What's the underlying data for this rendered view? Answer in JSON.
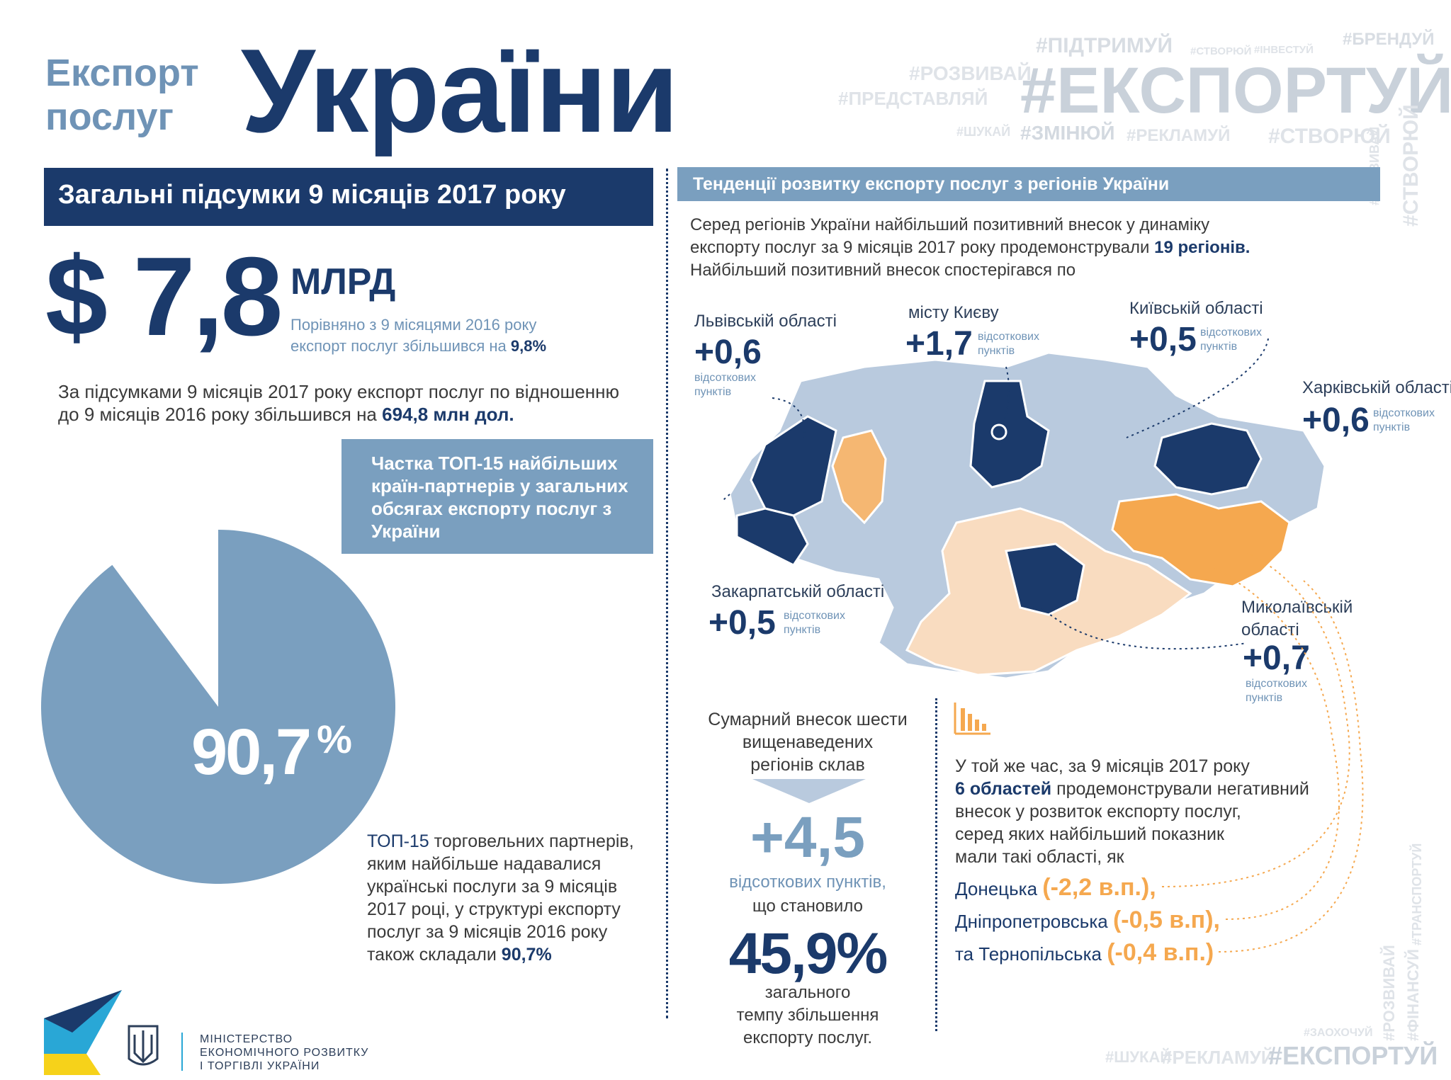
{
  "header": {
    "title_small_1": "Експорт",
    "title_small_2": "послуг",
    "title_big": "України"
  },
  "hashtags": {
    "t1": "#ПІДТРИМУЙ",
    "t2": "#СТВОРЮЙ",
    "t3": "#ІНВЕСТУЙ",
    "t4": "#БРЕНДУЙ",
    "t5": "#РОЗВИВАЙ",
    "t6": "#ЕКСПОРТУЙ",
    "t7": "#ПРЕДСТАВЛЯЙ",
    "t8": "#ШУКАЙ",
    "t9": "#ЗМІНЮЙ",
    "t10": "#РЕКЛАМУЙ",
    "t11": "#СТВОРЮЙ",
    "t12": "#РОЗВИВАЙ",
    "t13": "#СТВОРЮЙ",
    "t14": "#ФІНАНСУЙ",
    "t15": "#ТРАНСПОРТУЙ",
    "t16": "#РОЗВИВАЙ",
    "t17": "#ЗАОХОЧУЙ",
    "t18": "#ШУКАЙ",
    "t19": "#РЕКЛАМУЙ",
    "t20": "#ЕКСПОРТУЙ"
  },
  "left": {
    "banner": "Загальні підсумки 9 місяців 2017 року",
    "big_value": "$ 7,8",
    "unit": "МЛРД",
    "compare_1": "Порівняно з 9 місяцями 2016 року",
    "compare_2": "експорт послуг збільшився на",
    "compare_pct": "9,8%",
    "summary_1": "За підсумками 9 місяців 2017 року експорт послуг по відношенню",
    "summary_2": "до 9 місяців 2016 року збільшився на",
    "summary_value": "694,8 млн дол.",
    "box_1": "Частка ТОП-15 найбільших",
    "box_2": "країн-партнерів у загальних",
    "box_3": "обсягах експорту послуг з",
    "box_4": "України",
    "pie_value": "90,7",
    "pie_pct": "%",
    "top_1": "ТОП-15",
    "top_1b": "торговельних партнерів,",
    "top_2": "яким найбільше надавалися",
    "top_3": "українські послуги за 9 місяців",
    "top_4": "2017 році, у структурі експорту",
    "top_5": "послуг за 9 місяців 2016 року",
    "top_6": "також складали",
    "top_value": "90,7%"
  },
  "right": {
    "banner": "Тенденції розвитку експорту послуг з регіонів України",
    "intro_1": "Серед регіонів України найбільший позитивний внесок у динаміку",
    "intro_2": "експорту послуг за 9 місяців 2017 року продемонстрували",
    "intro_bold": "19 регіонів.",
    "intro_3": "Найбільший позитивний внесок спостерігався по",
    "unit_1": "відсоткових",
    "unit_2": "пунктів",
    "regions": [
      {
        "label": "Львівській області",
        "value": "+0,6"
      },
      {
        "label": "місту Києву",
        "value": "+1,7"
      },
      {
        "label": "Київській області",
        "value": "+0,5"
      },
      {
        "label": "Харківській області",
        "value": "+0,6"
      },
      {
        "label": "Закарпатській області",
        "value": "+0,5"
      },
      {
        "label_1": "Миколаївській",
        "label_2": "області",
        "value": "+0,7"
      }
    ],
    "sum_1": "Сумарний внесок шести",
    "sum_2": "вищенаведених",
    "sum_3": "регіонів склав",
    "sum_value": "+4,5",
    "sum_unit": "відсоткових пунктів,",
    "sum_4": "що становило",
    "sum_pct": "45,9%",
    "sum_5": "загального",
    "sum_6": "темпу збільшення",
    "sum_7": "експорту послуг.",
    "neg_1": "У той же час, за 9 місяців 2017 року",
    "neg_bold": "6 областей",
    "neg_2": "продемонстрували негативний",
    "neg_3": "внесок у розвиток експорту послуг,",
    "neg_4": "серед яких найбільший показник",
    "neg_5": "мали такі області, як",
    "neg_regions": [
      {
        "name": "Донецька",
        "value": "(-2,2 в.п.),"
      },
      {
        "name": "Дніпропетровська",
        "value": "(-0,5 в.п),"
      },
      {
        "name": "та Тернопільська",
        "value": "(-0,4 в.п.)"
      }
    ]
  },
  "footer": {
    "ministry_1": "МІНІСТЕРСТВО",
    "ministry_2": "ЕКОНОМІЧНОГО РОЗВИТКУ",
    "ministry_3": "І ТОРГІВЛІ УКРАЇНИ"
  },
  "colors": {
    "navy": "#1b3a6b",
    "steel": "#7a9fbf",
    "light_blue": "#b3c6dc",
    "orange": "#f5a84f",
    "light_orange": "#f9dcc0"
  }
}
